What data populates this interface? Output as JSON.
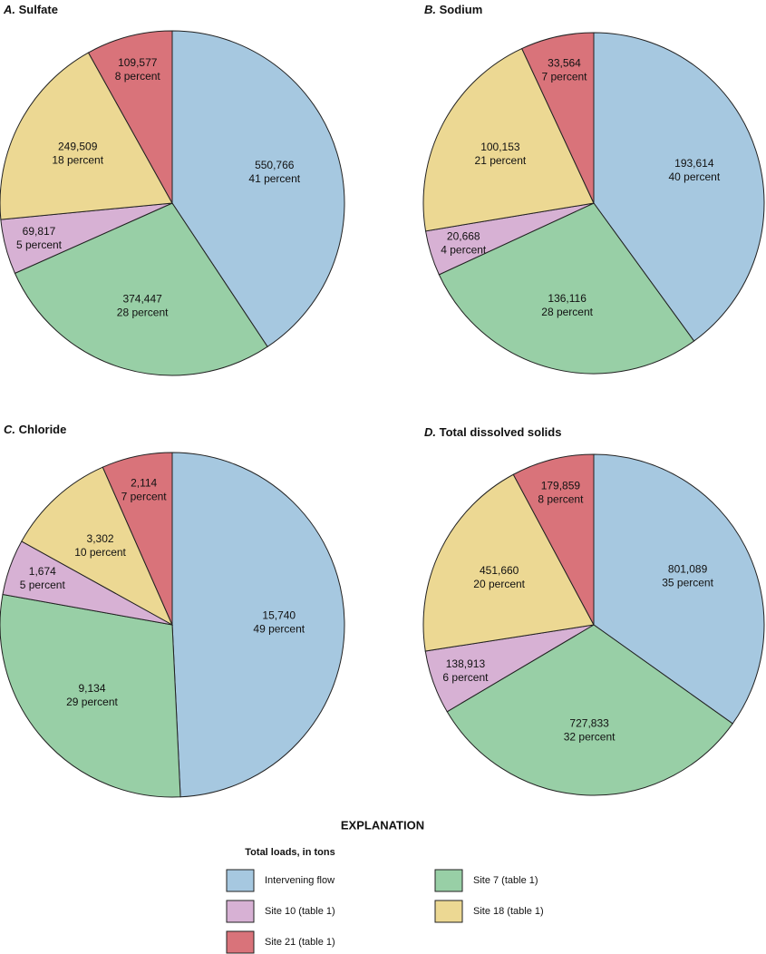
{
  "chart_data": [
    {
      "type": "pie",
      "label": "A.",
      "title": "Sulfate",
      "categories": [
        "Intervening flow",
        "Site 7 (table 1)",
        "Site 10 (table 1)",
        "Site 18 (table 1)",
        "Site 21 (table 1)"
      ],
      "colors": [
        "#a6c8e0",
        "#98cfa6",
        "#d7b1d4",
        "#ecd893",
        "#d9737a"
      ],
      "values": [
        550766,
        374447,
        69817,
        249509,
        109577
      ],
      "value_labels": [
        "550,766",
        "374,447",
        "69,817",
        "249,509",
        "109,577"
      ],
      "percent_labels": [
        "41 percent",
        "28 percent",
        "5 percent",
        "18 percent",
        "8 percent"
      ]
    },
    {
      "type": "pie",
      "label": "B.",
      "title": "Sodium",
      "categories": [
        "Intervening flow",
        "Site 7 (table 1)",
        "Site 10 (table 1)",
        "Site 18 (table 1)",
        "Site 21 (table 1)"
      ],
      "colors": [
        "#a6c8e0",
        "#98cfa6",
        "#d7b1d4",
        "#ecd893",
        "#d9737a"
      ],
      "values": [
        193614,
        136116,
        20668,
        100153,
        33564
      ],
      "value_labels": [
        "193,614",
        "136,116",
        "20,668",
        "100,153",
        "33,564"
      ],
      "percent_labels": [
        "40 percent",
        "28 percent",
        "4 percent",
        "21 percent",
        "7 percent"
      ]
    },
    {
      "type": "pie",
      "label": "C.",
      "title": "Chloride",
      "categories": [
        "Intervening flow",
        "Site 7 (table 1)",
        "Site 10 (table 1)",
        "Site 18 (table 1)",
        "Site 21 (table 1)"
      ],
      "colors": [
        "#a6c8e0",
        "#98cfa6",
        "#d7b1d4",
        "#ecd893",
        "#d9737a"
      ],
      "values": [
        15740,
        9134,
        1674,
        3302,
        2114
      ],
      "value_labels": [
        "15,740",
        "9,134",
        "1,674",
        "3,302",
        "2,114"
      ],
      "percent_labels": [
        "49 percent",
        "29 percent",
        "5 percent",
        "10 percent",
        "7 percent"
      ]
    },
    {
      "type": "pie",
      "label": "D.",
      "title": "Total dissolved solids",
      "categories": [
        "Intervening flow",
        "Site 7 (table 1)",
        "Site 10 (table 1)",
        "Site 18 (table 1)",
        "Site 21 (table 1)"
      ],
      "colors": [
        "#a6c8e0",
        "#98cfa6",
        "#d7b1d4",
        "#ecd893",
        "#d9737a"
      ],
      "values": [
        801089,
        727833,
        138913,
        451660,
        179859
      ],
      "value_labels": [
        "801,089",
        "727,833",
        "138,913",
        "451,660",
        "179,859"
      ],
      "percent_labels": [
        "35 percent",
        "32 percent",
        "6 percent",
        "20 percent",
        "8 percent"
      ]
    }
  ],
  "legend": {
    "title": "EXPLANATION",
    "subtitle": "Total loads, in tons"
  }
}
